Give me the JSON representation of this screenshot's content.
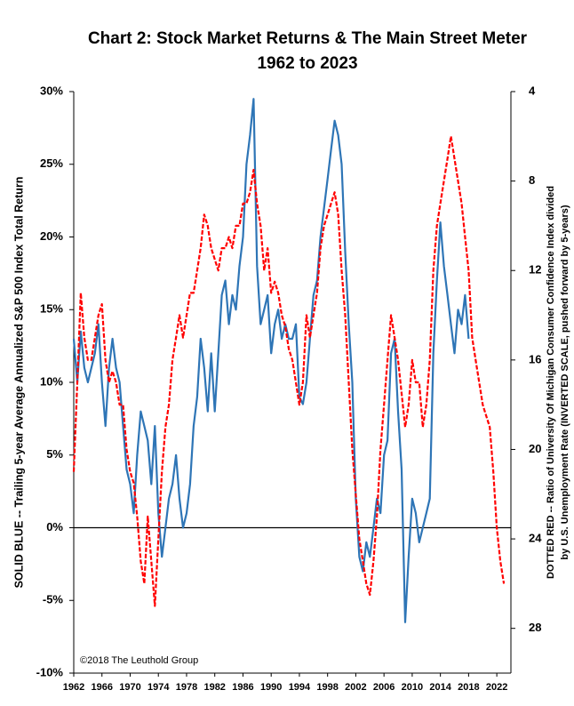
{
  "chart_data": {
    "type": "line",
    "title": "Chart 2: Stock Market Returns & The Main Street Meter",
    "subtitle": "1962 to 2023",
    "y_label": "SOLID BLUE -- Trailing 5-year Average Annualized S&P 500 Index Total Return",
    "y2_label": "DOTTED RED -- Ratio of University Of Michigan Consumer Confidence Index  divided",
    "y2_label_line2": "by U.S. Unemployment Rate (INVERTED SCALE, pushed forward by 5-years)",
    "annotation": "©2018 The Leuthold Group",
    "xlim": [
      1962,
      2024
    ],
    "xticks": [
      1962,
      1966,
      1970,
      1974,
      1978,
      1982,
      1986,
      1990,
      1994,
      1998,
      2002,
      2006,
      2010,
      2014,
      2018,
      2022
    ],
    "ylim": [
      -10,
      30
    ],
    "yticks": [
      {
        "value": -10,
        "label": "-10%"
      },
      {
        "value": -5,
        "label": "-5%"
      },
      {
        "value": 0,
        "label": "0%"
      },
      {
        "value": 5,
        "label": "5%"
      },
      {
        "value": 10,
        "label": "10%"
      },
      {
        "value": 15,
        "label": "15%"
      },
      {
        "value": 20,
        "label": "20%"
      },
      {
        "value": 25,
        "label": "25%"
      },
      {
        "value": 30,
        "label": "30%"
      }
    ],
    "y2lim": [
      4,
      30
    ],
    "y2_inverted": true,
    "y2ticks": [
      4,
      8,
      12,
      16,
      20,
      24,
      28
    ],
    "series": [
      {
        "color": "#2e75b6",
        "dashed": false,
        "x": [
          1962,
          1962.5,
          1963,
          1963.5,
          1964,
          1965,
          1965.5,
          1966,
          1966.5,
          1967,
          1967.5,
          1968,
          1968.5,
          1969,
          1969.5,
          1970,
          1970.5,
          1971,
          1971.5,
          1972,
          1972.5,
          1973,
          1973.5,
          1974,
          1974.5,
          1975,
          1975.5,
          1976,
          1976.5,
          1977,
          1977.5,
          1978,
          1978.5,
          1979,
          1979.5,
          1980,
          1980.5,
          1981,
          1981.5,
          1982,
          1982.5,
          1983,
          1983.5,
          1984,
          1984.5,
          1985,
          1985.5,
          1986,
          1986.5,
          1987,
          1987.5,
          1988,
          1988.5,
          1989,
          1989.5,
          1990,
          1990.5,
          1991,
          1991.5,
          1992,
          1992.5,
          1993,
          1993.5,
          1994,
          1994.5,
          1995,
          1995.5,
          1996,
          1996.5,
          1997,
          1997.5,
          1998,
          1998.5,
          1999,
          1999.5,
          2000,
          2000.5,
          2001,
          2001.5,
          2002,
          2002.5,
          2003,
          2003.5,
          2004,
          2004.5,
          2005,
          2005.5,
          2006,
          2006.5,
          2007,
          2007.5,
          2008,
          2008.5,
          2009,
          2009.5,
          2010,
          2010.5,
          2011,
          2011.5,
          2012,
          2012.5,
          2013,
          2013.5,
          2014,
          2014.5,
          2015,
          2015.5,
          2016,
          2016.5,
          2017,
          2017.5,
          2018
        ],
        "values": [
          13,
          10,
          13.5,
          11,
          10,
          12,
          14,
          10,
          7,
          11,
          13,
          11,
          10,
          7,
          4,
          3,
          1,
          5,
          8,
          7,
          6,
          3,
          7,
          1,
          -2,
          0,
          2,
          3,
          5,
          2,
          0,
          1,
          3,
          7,
          9,
          13,
          11,
          8,
          12,
          8,
          12,
          16,
          17,
          14,
          16,
          15,
          18,
          20,
          25,
          27,
          29.5,
          18,
          14,
          15,
          16,
          12,
          14,
          15,
          13,
          14,
          13,
          13,
          14,
          9,
          8.5,
          10,
          13,
          16,
          17,
          20,
          22,
          24,
          26,
          28,
          27,
          25,
          19,
          14,
          10,
          2,
          -2,
          -3,
          -1,
          -2,
          0,
          2,
          1,
          5,
          6,
          12,
          13,
          8,
          4,
          -6.5,
          -2,
          2,
          1,
          -1,
          0,
          1,
          2,
          12,
          17,
          21,
          18,
          16,
          14,
          12,
          15,
          14,
          16,
          13
        ]
      },
      {
        "color": "#ff0000",
        "dashed": true,
        "axis": "y2",
        "x": [
          1962,
          1962.5,
          1963,
          1963.5,
          1964,
          1964.5,
          1965,
          1965.5,
          1966,
          1966.5,
          1967,
          1967.5,
          1968,
          1968.5,
          1969,
          1969.5,
          1970,
          1970.5,
          1971,
          1971.5,
          1972,
          1972.5,
          1973,
          1973.5,
          1974,
          1974.5,
          1975,
          1975.5,
          1976,
          1976.5,
          1977,
          1977.5,
          1978,
          1978.5,
          1979,
          1979.5,
          1980,
          1980.5,
          1981,
          1981.5,
          1982,
          1982.5,
          1983,
          1983.5,
          1984,
          1984.5,
          1985,
          1985.5,
          1986,
          1986.5,
          1987,
          1987.5,
          1988,
          1988.5,
          1989,
          1989.5,
          1990,
          1990.5,
          1991,
          1991.5,
          1992,
          1992.5,
          1993,
          1993.5,
          1994,
          1994.5,
          1995,
          1995.5,
          1996,
          1996.5,
          1997,
          1997.5,
          1998,
          1998.5,
          1999,
          1999.5,
          2000,
          2000.5,
          2001,
          2001.5,
          2002,
          2002.5,
          2003,
          2003.5,
          2004,
          2004.5,
          2005,
          2005.5,
          2006,
          2006.5,
          2007,
          2007.5,
          2008,
          2008.5,
          2009,
          2009.5,
          2010,
          2010.5,
          2011,
          2011.5,
          2012,
          2012.5,
          2013,
          2013.5,
          2014,
          2014.5,
          2015,
          2015.5,
          2016,
          2016.5,
          2017,
          2017.5,
          2018,
          2018.5,
          2019,
          2019.5,
          2020,
          2020.5,
          2021,
          2021.5,
          2022,
          2022.5,
          2023
        ],
        "values": [
          21,
          17,
          13,
          15,
          16,
          16,
          15,
          14,
          13.5,
          16,
          17,
          16.5,
          17,
          18,
          18,
          20,
          21,
          21.5,
          23,
          25,
          26,
          23,
          25,
          27,
          24,
          21,
          19,
          18,
          16,
          15,
          14,
          15,
          14,
          13,
          13,
          12,
          11,
          9.5,
          10,
          11,
          11.5,
          12,
          11,
          11,
          10.5,
          11,
          10,
          10,
          9,
          9,
          8.5,
          7.5,
          9,
          10,
          12,
          11,
          13,
          12.5,
          13,
          14,
          14.5,
          15.5,
          16,
          17,
          18,
          17,
          14,
          15,
          14,
          13,
          11,
          10,
          9.5,
          9,
          8.5,
          9.5,
          12,
          14,
          17,
          20,
          22,
          24,
          25,
          26,
          26.5,
          25,
          23,
          20,
          18,
          16,
          14,
          15,
          16,
          17.5,
          19,
          18,
          16,
          17,
          17,
          19,
          18,
          16,
          12,
          10,
          9,
          8,
          7,
          6,
          7,
          8,
          9,
          10.5,
          12,
          15,
          16,
          17,
          18,
          18.5,
          19,
          21,
          23.5,
          25,
          26
        ]
      }
    ]
  }
}
